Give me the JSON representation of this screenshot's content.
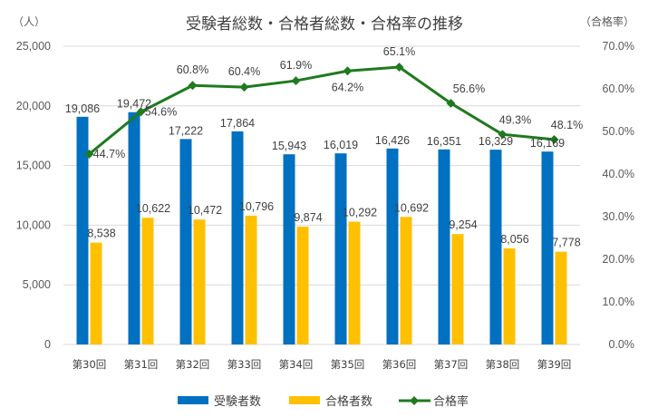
{
  "chart_data": {
    "type": "bar+line",
    "title": "受験者総数・合格者総数・合格率の推移",
    "left_axis_label": "（人）",
    "right_axis_label": "（合格率）",
    "categories": [
      "第30回",
      "第31回",
      "第32回",
      "第33回",
      "第34回",
      "第35回",
      "第36回",
      "第37回",
      "第38回",
      "第39回"
    ],
    "left_ylim": [
      0,
      25000
    ],
    "left_ticks": [
      "0",
      "5,000",
      "10,000",
      "15,000",
      "20,000",
      "25,000"
    ],
    "left_tick_values": [
      0,
      5000,
      10000,
      15000,
      20000,
      25000
    ],
    "right_ylim": [
      0,
      70
    ],
    "right_ticks": [
      "0.0%",
      "10.0%",
      "20.0%",
      "30.0%",
      "40.0%",
      "50.0%",
      "60.0%",
      "70.0%"
    ],
    "right_tick_values": [
      0,
      10,
      20,
      30,
      40,
      50,
      60,
      70
    ],
    "grid": true,
    "legend_position": "bottom",
    "series": [
      {
        "name": "受験者数",
        "type": "bar",
        "axis": "left",
        "color": "#0070C0",
        "values": [
          19086,
          19472,
          17222,
          17864,
          15943,
          16019,
          16426,
          16351,
          16329,
          16169
        ],
        "labels": [
          "19,086",
          "19,472",
          "17,222",
          "17,864",
          "15,943",
          "16,019",
          "16,426",
          "16,351",
          "16,329",
          "16,169"
        ]
      },
      {
        "name": "合格者数",
        "type": "bar",
        "axis": "left",
        "color": "#FFC000",
        "values": [
          8538,
          10622,
          10472,
          10796,
          9874,
          10292,
          10692,
          9254,
          8056,
          7778
        ],
        "labels": [
          "8,538",
          "10,622",
          "10,472",
          "10,796",
          "9,874",
          "10,292",
          "10,692",
          "9,254",
          "8,056",
          "7,778"
        ]
      },
      {
        "name": "合格率",
        "type": "line",
        "axis": "right",
        "color": "#1E7B1E",
        "values": [
          44.7,
          54.6,
          60.8,
          60.4,
          61.9,
          64.2,
          65.1,
          56.6,
          49.3,
          48.1
        ],
        "labels": [
          "44.7%",
          "54.6%",
          "60.8%",
          "60.4%",
          "61.9%",
          "64.2%",
          "65.1%",
          "56.6%",
          "49.3%",
          "48.1%"
        ]
      }
    ]
  }
}
